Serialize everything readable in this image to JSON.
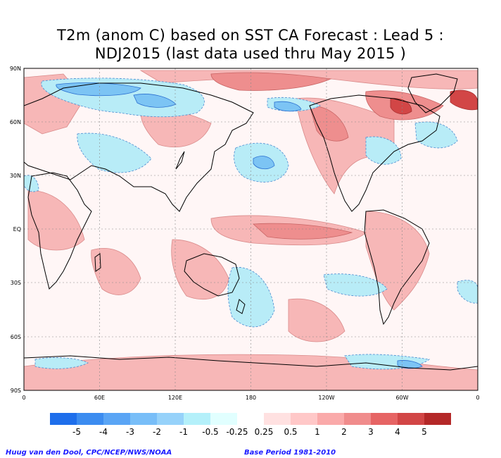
{
  "title": {
    "line1": "T2m (anom C) based on SST CA Forecast : Lead 5 :",
    "line2": "NDJ2015 (last data used thru May 2015 )"
  },
  "axes": {
    "lat_labels": [
      "90N",
      "60N",
      "30N",
      "EQ",
      "30S",
      "60S",
      "90S"
    ],
    "lon_labels": [
      "0",
      "60E",
      "120E",
      "180",
      "120W",
      "60W",
      "0"
    ]
  },
  "colorbar": {
    "labels": [
      "-5",
      "-4",
      "-3",
      "-2",
      "-1",
      "-0.5",
      "-0.25",
      "0.25",
      "0.5",
      "1",
      "2",
      "3",
      "4",
      "5"
    ],
    "colors": [
      "#1e6eeb",
      "#3c8cf0",
      "#5aa5f5",
      "#78bef8",
      "#96d2fa",
      "#b4f0fa",
      "#e1ffff",
      "#ffffff",
      "#ffe1e1",
      "#ffc8c8",
      "#faaaaa",
      "#f08c8c",
      "#e66464",
      "#d24646",
      "#b42828"
    ]
  },
  "credits": {
    "left": "Huug van den Dool, CPC/NCEP/NWS/NOAA",
    "right": "Base Period 1981-2010"
  }
}
